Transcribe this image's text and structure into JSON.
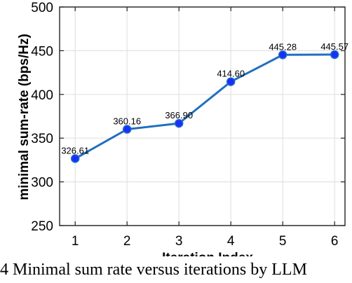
{
  "chart_data": {
    "type": "line",
    "title": "",
    "xlabel": "Iteration Index",
    "ylabel": "minimal sum-rate (bps/Hz)",
    "x": [
      1,
      2,
      3,
      4,
      5,
      6
    ],
    "series": [
      {
        "values": [
          326.61,
          360.16,
          366.9,
          414.6,
          445.28,
          445.57
        ],
        "data_labels": [
          "326.61",
          "360.16",
          "366.90",
          "414.60",
          "445.28",
          "445.57"
        ]
      }
    ],
    "xlim": [
      0.7,
      6.2
    ],
    "ylim": [
      250,
      500
    ],
    "xticks": [
      "1",
      "2",
      "3",
      "4",
      "5",
      "6"
    ],
    "yticks": [
      "250",
      "300",
      "350",
      "400",
      "450",
      "500"
    ],
    "grid": true,
    "line_color": "#1f6fbf",
    "marker_color": "#1a2fff"
  },
  "caption_text": "4  Minimal sum rate versus iterations by LLM"
}
